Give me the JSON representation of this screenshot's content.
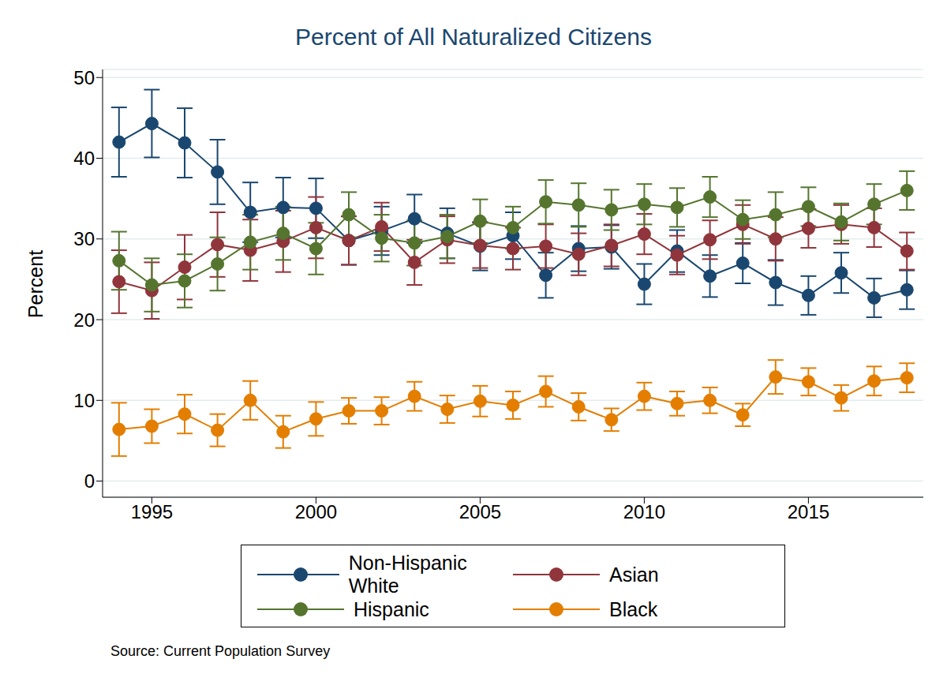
{
  "chart_data": {
    "type": "line",
    "title": "Percent of All Naturalized Citizens",
    "y_label": "Percent",
    "note": "Source: Current Population Survey",
    "x": [
      1994,
      1995,
      1996,
      1997,
      1998,
      1999,
      2000,
      2001,
      2002,
      2003,
      2004,
      2005,
      2006,
      2007,
      2008,
      2009,
      2010,
      2011,
      2012,
      2013,
      2014,
      2015,
      2016,
      2017,
      2018
    ],
    "xlim": [
      1993.5,
      2018.5
    ],
    "xticks": [
      1995,
      2000,
      2005,
      2010,
      2015
    ],
    "ylim": [
      -2,
      51
    ],
    "yticks": [
      0,
      10,
      20,
      30,
      40,
      50
    ],
    "grid": true,
    "legend": "bottom",
    "marker": "circle",
    "line_style": "solid",
    "series": [
      {
        "name": "Non-Hispanic White",
        "color": "#1a476f",
        "values": [
          42,
          44.3,
          41.9,
          38.3,
          33.3,
          33.9,
          33.8,
          29.8,
          31,
          32.5,
          30.7,
          29.1,
          30.4,
          25.5,
          28.8,
          29,
          24.4,
          28.5,
          25.4,
          27,
          24.6,
          23,
          25.8,
          22.7,
          23.7
        ],
        "errors": [
          4.3,
          4.2,
          4.3,
          4,
          3.7,
          3.7,
          3.7,
          3,
          3,
          3,
          3.1,
          3,
          2.9,
          2.8,
          2.8,
          2.7,
          2.5,
          2.6,
          2.6,
          2.5,
          2.8,
          2.4,
          2.5,
          2.4,
          2.4
        ]
      },
      {
        "name": "Asian",
        "color": "#90353b",
        "values": [
          24.7,
          23.6,
          26.5,
          29.3,
          28.6,
          29.7,
          31.4,
          29.8,
          31.5,
          27.1,
          29.9,
          29.2,
          28.8,
          29.1,
          28.1,
          29.2,
          30.6,
          28,
          29.9,
          31.8,
          30,
          31.3,
          31.8,
          31.4,
          28.5
        ],
        "errors": [
          3.9,
          3.5,
          4,
          4,
          3.8,
          3.8,
          3.8,
          3,
          3,
          2.8,
          2.9,
          2.8,
          2.6,
          2.7,
          2.6,
          2.6,
          2.5,
          2.4,
          2.4,
          2.4,
          2.7,
          2.4,
          2.4,
          2.4,
          2.3
        ]
      },
      {
        "name": "Hispanic",
        "color": "#55752f",
        "values": [
          27.3,
          24.3,
          24.8,
          26.9,
          29.6,
          30.7,
          28.8,
          33,
          30.1,
          29.5,
          30.3,
          32.2,
          31.4,
          34.6,
          34.2,
          33.6,
          34.3,
          33.9,
          35.2,
          32.4,
          33,
          34,
          32.1,
          34.3,
          36
        ],
        "errors": [
          3.6,
          3.3,
          3.3,
          3.3,
          3.4,
          3.3,
          3.2,
          2.8,
          2.9,
          2.8,
          2.7,
          2.7,
          2.6,
          2.7,
          2.7,
          2.5,
          2.5,
          2.4,
          2.5,
          2.4,
          2.8,
          2.4,
          2.3,
          2.5,
          2.4
        ]
      },
      {
        "name": "Black",
        "color": "#e37e00",
        "values": [
          6.4,
          6.8,
          8.3,
          6.3,
          10,
          6.1,
          7.7,
          8.7,
          8.7,
          10.5,
          8.9,
          9.9,
          9.4,
          11.1,
          9.2,
          7.6,
          10.5,
          9.6,
          10,
          8.2,
          12.9,
          12.3,
          10.3,
          12.4,
          12.8
        ],
        "errors": [
          3.3,
          2.1,
          2.4,
          2,
          2.4,
          2,
          2.1,
          1.6,
          1.7,
          1.8,
          1.7,
          1.9,
          1.7,
          1.9,
          1.7,
          1.4,
          1.7,
          1.5,
          1.6,
          1.4,
          2.1,
          1.7,
          1.6,
          1.8,
          1.8
        ]
      }
    ]
  }
}
